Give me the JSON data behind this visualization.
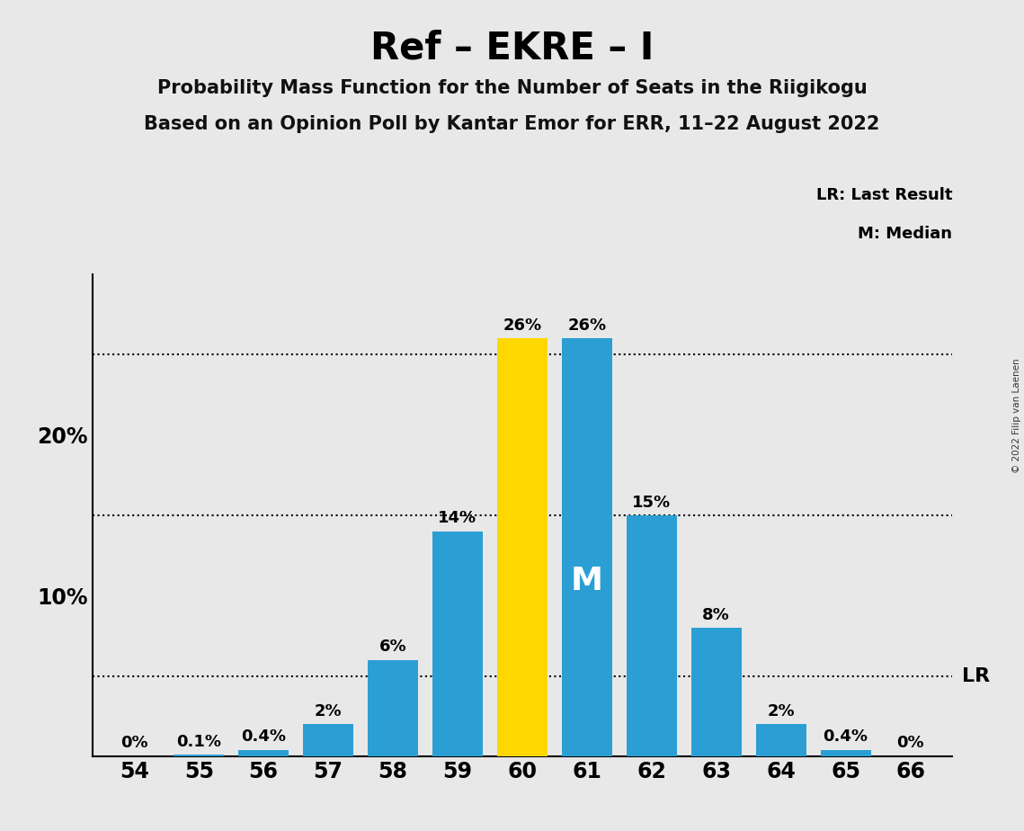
{
  "title": "Ref – EKRE – I",
  "subtitle1": "Probability Mass Function for the Number of Seats in the Riigikogu",
  "subtitle2": "Based on an Opinion Poll by Kantar Emor for ERR, 11–22 August 2022",
  "copyright": "© 2022 Filip van Laenen",
  "seats": [
    54,
    55,
    56,
    57,
    58,
    59,
    60,
    61,
    62,
    63,
    64,
    65,
    66
  ],
  "pmf_values": [
    0.0,
    0.001,
    0.004,
    0.02,
    0.06,
    0.14,
    0.26,
    0.26,
    0.15,
    0.08,
    0.02,
    0.004,
    0.0
  ],
  "lr_seat": 60,
  "median_seat": 61,
  "pmf_labels": [
    "0%",
    "0.1%",
    "0.4%",
    "2%",
    "6%",
    "14%",
    "26%",
    "26%",
    "15%",
    "8%",
    "2%",
    "0.4%",
    "0%"
  ],
  "bar_color_blue": "#2b9fd4",
  "bar_color_yellow": "#FFD700",
  "background_color": "#E8E8E8",
  "ylim": [
    0,
    0.3
  ],
  "yticks": [
    0.0,
    0.05,
    0.1,
    0.15,
    0.2,
    0.25,
    0.3
  ],
  "ytick_labels_shown": [
    "",
    "",
    "10%",
    "",
    "20%",
    "",
    ""
  ],
  "dotted_lines": [
    0.05,
    0.15,
    0.25
  ],
  "legend_text1": "LR: Last Result",
  "legend_text2": "M: Median",
  "lr_label": "LR",
  "median_label": "M"
}
